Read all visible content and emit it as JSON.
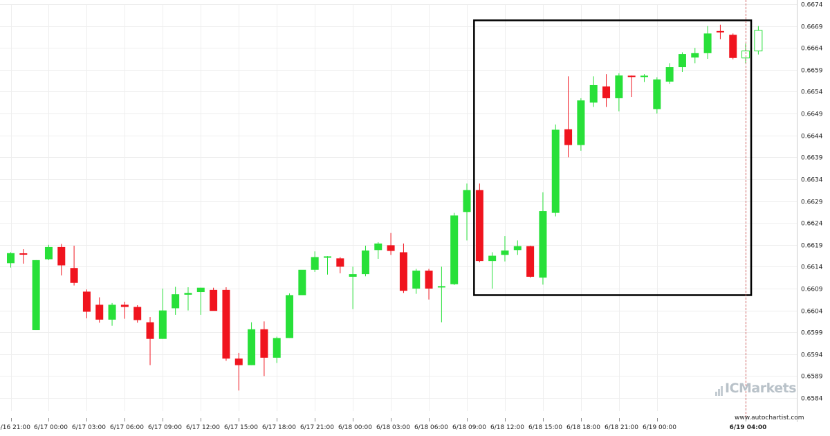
{
  "chart_data": {
    "type": "candlestick",
    "y_range": [
      0.6581,
      0.6674
    ],
    "y_ticks": [
      "0.6674",
      "0.6669",
      "0.6664",
      "0.6659",
      "0.6654",
      "0.6649",
      "0.6644",
      "0.6639",
      "0.6634",
      "0.6629",
      "0.6624",
      "0.6619",
      "0.6614",
      "0.6609",
      "0.6604",
      "0.6599",
      "0.6594",
      "0.6589",
      "0.6584"
    ],
    "x_ticks": [
      "6/16 21:00",
      "6/17 00:00",
      "6/17 03:00",
      "6/17 06:00",
      "6/17 09:00",
      "6/17 12:00",
      "6/17 15:00",
      "6/17 18:00",
      "6/17 21:00",
      "6/18 00:00",
      "6/18 03:00",
      "6/18 06:00",
      "6/18 09:00",
      "6/18 12:00",
      "6/18 15:00",
      "6/18 18:00",
      "6/18 21:00",
      "6/19 00:00",
      "6/19 04:00"
    ],
    "highlighted_x_tick": "6/19 04:00",
    "bar_interval": "1 hour",
    "candles": [
      {
        "o": 0.66148,
        "h": 0.66173,
        "l": 0.66138,
        "c": 0.66171
      },
      {
        "o": 0.66169,
        "h": 0.6618,
        "l": 0.66147,
        "c": 0.66167
      },
      {
        "o": 0.65995,
        "h": 0.66155,
        "l": 0.65995,
        "c": 0.66155
      },
      {
        "o": 0.66157,
        "h": 0.6619,
        "l": 0.66155,
        "c": 0.66185
      },
      {
        "o": 0.66185,
        "h": 0.66192,
        "l": 0.6612,
        "c": 0.66143
      },
      {
        "o": 0.66137,
        "h": 0.66188,
        "l": 0.66097,
        "c": 0.66103
      },
      {
        "o": 0.66083,
        "h": 0.66088,
        "l": 0.66022,
        "c": 0.66037
      },
      {
        "o": 0.66053,
        "h": 0.6607,
        "l": 0.66012,
        "c": 0.66019
      },
      {
        "o": 0.66019,
        "h": 0.66057,
        "l": 0.66005,
        "c": 0.66053
      },
      {
        "o": 0.66053,
        "h": 0.6606,
        "l": 0.66021,
        "c": 0.66048
      },
      {
        "o": 0.66048,
        "h": 0.66052,
        "l": 0.66012,
        "c": 0.66018
      },
      {
        "o": 0.66013,
        "h": 0.66025,
        "l": 0.65915,
        "c": 0.65975
      },
      {
        "o": 0.65975,
        "h": 0.6609,
        "l": 0.65975,
        "c": 0.6604
      },
      {
        "o": 0.66045,
        "h": 0.66094,
        "l": 0.6603,
        "c": 0.66077
      },
      {
        "o": 0.66076,
        "h": 0.66093,
        "l": 0.6604,
        "c": 0.6608
      },
      {
        "o": 0.66082,
        "h": 0.66092,
        "l": 0.6603,
        "c": 0.66092
      },
      {
        "o": 0.66087,
        "h": 0.66092,
        "l": 0.66048,
        "c": 0.66039
      },
      {
        "o": 0.66087,
        "h": 0.66093,
        "l": 0.65925,
        "c": 0.6593
      },
      {
        "o": 0.6593,
        "h": 0.65943,
        "l": 0.65857,
        "c": 0.65915
      },
      {
        "o": 0.65915,
        "h": 0.66013,
        "l": 0.65915,
        "c": 0.65997
      },
      {
        "o": 0.65997,
        "h": 0.66015,
        "l": 0.6589,
        "c": 0.65932
      },
      {
        "o": 0.65932,
        "h": 0.6598,
        "l": 0.6592,
        "c": 0.65977
      },
      {
        "o": 0.65977,
        "h": 0.66079,
        "l": 0.65977,
        "c": 0.66075
      },
      {
        "o": 0.66075,
        "h": 0.66129,
        "l": 0.66075,
        "c": 0.66133
      },
      {
        "o": 0.66133,
        "h": 0.66175,
        "l": 0.66128,
        "c": 0.66162
      },
      {
        "o": 0.66162,
        "h": 0.66164,
        "l": 0.66122,
        "c": 0.66162
      },
      {
        "o": 0.66159,
        "h": 0.66162,
        "l": 0.66125,
        "c": 0.6614
      },
      {
        "o": 0.66117,
        "h": 0.6614,
        "l": 0.66043,
        "c": 0.66123
      },
      {
        "o": 0.66123,
        "h": 0.66188,
        "l": 0.66118,
        "c": 0.66177
      },
      {
        "o": 0.66178,
        "h": 0.66196,
        "l": 0.66158,
        "c": 0.66193
      },
      {
        "o": 0.66189,
        "h": 0.66217,
        "l": 0.66167,
        "c": 0.66176
      },
      {
        "o": 0.66173,
        "h": 0.66193,
        "l": 0.6608,
        "c": 0.66085
      },
      {
        "o": 0.6609,
        "h": 0.66135,
        "l": 0.66078,
        "c": 0.66131
      },
      {
        "o": 0.66131,
        "h": 0.66135,
        "l": 0.66065,
        "c": 0.6609
      },
      {
        "o": 0.66092,
        "h": 0.6614,
        "l": 0.66013,
        "c": 0.66094
      },
      {
        "o": 0.661,
        "h": 0.66263,
        "l": 0.66098,
        "c": 0.66257
      },
      {
        "o": 0.66265,
        "h": 0.6633,
        "l": 0.662,
        "c": 0.66315
      },
      {
        "o": 0.66315,
        "h": 0.6633,
        "l": 0.6615,
        "c": 0.66153
      },
      {
        "o": 0.66153,
        "h": 0.66173,
        "l": 0.6609,
        "c": 0.66165
      },
      {
        "o": 0.66167,
        "h": 0.6621,
        "l": 0.66152,
        "c": 0.66177
      },
      {
        "o": 0.66178,
        "h": 0.662,
        "l": 0.66167,
        "c": 0.66187
      },
      {
        "o": 0.66187,
        "h": 0.66188,
        "l": 0.66115,
        "c": 0.66117
      },
      {
        "o": 0.66115,
        "h": 0.6631,
        "l": 0.66099,
        "c": 0.66267
      },
      {
        "o": 0.66263,
        "h": 0.66465,
        "l": 0.66255,
        "c": 0.66453
      },
      {
        "o": 0.66454,
        "h": 0.66575,
        "l": 0.6639,
        "c": 0.66418
      },
      {
        "o": 0.66418,
        "h": 0.66525,
        "l": 0.66405,
        "c": 0.6652
      },
      {
        "o": 0.66515,
        "h": 0.66575,
        "l": 0.66505,
        "c": 0.66555
      },
      {
        "o": 0.66552,
        "h": 0.6658,
        "l": 0.66505,
        "c": 0.66525
      },
      {
        "o": 0.66525,
        "h": 0.66582,
        "l": 0.66495,
        "c": 0.66577
      },
      {
        "o": 0.66575,
        "h": 0.66577,
        "l": 0.66528,
        "c": 0.66573
      },
      {
        "o": 0.66573,
        "h": 0.6658,
        "l": 0.66562,
        "c": 0.66575
      },
      {
        "o": 0.665,
        "h": 0.66573,
        "l": 0.6649,
        "c": 0.66568
      },
      {
        "o": 0.66563,
        "h": 0.66605,
        "l": 0.66558,
        "c": 0.66596
      },
      {
        "o": 0.66596,
        "h": 0.6663,
        "l": 0.66585,
        "c": 0.66626
      },
      {
        "o": 0.66618,
        "h": 0.6664,
        "l": 0.66605,
        "c": 0.66628
      },
      {
        "o": 0.66628,
        "h": 0.6669,
        "l": 0.66615,
        "c": 0.66673
      },
      {
        "o": 0.66677,
        "h": 0.66693,
        "l": 0.6666,
        "c": 0.66675
      },
      {
        "o": 0.6667,
        "h": 0.66673,
        "l": 0.66614,
        "c": 0.66617
      },
      {
        "o": 0.66617,
        "h": 0.6665,
        "l": 0.66605,
        "c": 0.66633
      },
      {
        "o": 0.66633,
        "h": 0.6669,
        "l": 0.66625,
        "c": 0.6668
      }
    ],
    "hollow_last_candles": 2,
    "pattern_box": {
      "from_candle": 37,
      "to_candle": 58,
      "low": 0.66075,
      "high": 0.66703
    },
    "vertical_marker_candle": 58,
    "colors": {
      "up": "#28e039",
      "down": "#f0141e",
      "grid": "#eeeeee",
      "box": "#000000",
      "marker": "#d06060"
    },
    "grid": true
  },
  "brand": {
    "name": "ICMarkets",
    "credit": "www.autochartist.com"
  }
}
